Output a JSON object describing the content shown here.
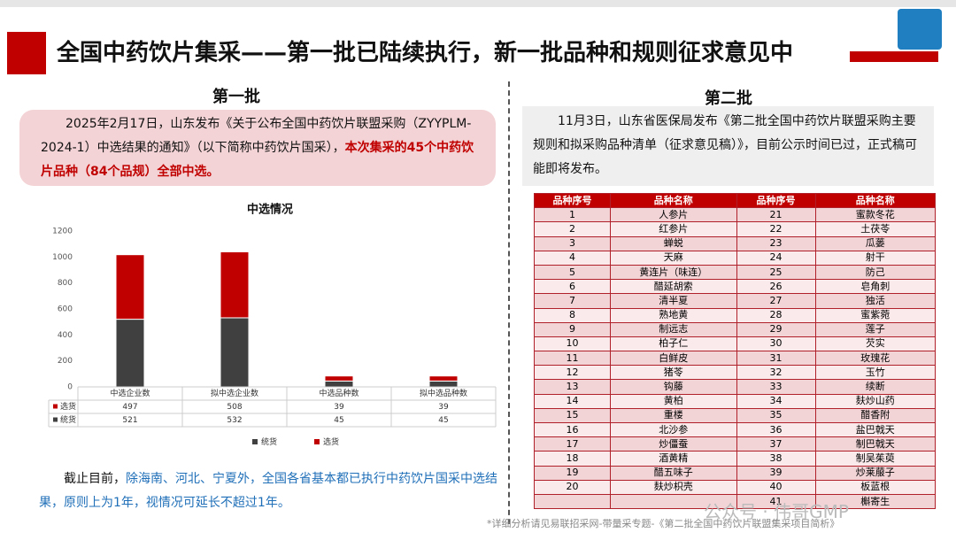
{
  "header": {
    "title": "全国中药饮片集采——第一批已陆续执行，新一批品种和规则征求意见中"
  },
  "batch1": {
    "heading": "第一批",
    "text": [
      "2025年2月17日，山东发布《关于公布全国中药饮片联盟采购（ZYYPLM-2024-1）中选结果的通知》（以下简称中药饮片国采），",
      "本次集采的45个中药饮片品种（84个品规）全部中选。"
    ],
    "note": [
      "截止目前，",
      "除海南、河北、宁夏外，全国各省基本都已执行中药饮片国采中选结果，原则上为1年，视情况可延长不超过1年。"
    ]
  },
  "chart_data": {
    "type": "bar",
    "stacked": true,
    "title": "中选情况",
    "categories": [
      "中选企业数",
      "拟中选企业数",
      "中选品种数",
      "拟中选品种数"
    ],
    "series": [
      {
        "name": "统货",
        "color": "#404040",
        "values": [
          521,
          532,
          45,
          45
        ]
      },
      {
        "name": "选货",
        "color": "#c00000",
        "values": [
          497,
          508,
          39,
          39
        ]
      }
    ],
    "ylim": [
      0,
      1200
    ],
    "yticks": [
      0,
      200,
      400,
      600,
      800,
      1000,
      1200
    ],
    "grid": false,
    "legend": "bottom",
    "data_table": true
  },
  "batch2": {
    "heading": "第二批",
    "text": "11月3日，山东省医保局发布《第二批全国中药饮片联盟采购主要规则和拟采购品种清单（征求意见稿）》，目前公示时间已过，正式稿可能即将发布。",
    "table": {
      "header": [
        "品种序号",
        "品种名称",
        "品种序号",
        "品种名称"
      ],
      "rows": [
        [
          1,
          "人参片",
          21,
          "蜜款冬花"
        ],
        [
          2,
          "红参片",
          22,
          "土茯苓"
        ],
        [
          3,
          "蝉蜕",
          23,
          "瓜蒌"
        ],
        [
          4,
          "天麻",
          24,
          "射干"
        ],
        [
          5,
          "黄连片（味连）",
          25,
          "防己"
        ],
        [
          6,
          "醋延胡索",
          26,
          "皂角刺"
        ],
        [
          7,
          "清半夏",
          27,
          "独活"
        ],
        [
          8,
          "熟地黄",
          28,
          "蜜紫菀"
        ],
        [
          9,
          "制远志",
          29,
          "莲子"
        ],
        [
          10,
          "柏子仁",
          30,
          "芡实"
        ],
        [
          11,
          "白鲜皮",
          31,
          "玫瑰花"
        ],
        [
          12,
          "猪苓",
          32,
          "玉竹"
        ],
        [
          13,
          "钩藤",
          33,
          "续断"
        ],
        [
          14,
          "黄柏",
          34,
          "麸炒山药"
        ],
        [
          15,
          "重楼",
          35,
          "醋香附"
        ],
        [
          16,
          "北沙参",
          36,
          "盐巴戟天"
        ],
        [
          17,
          "炒僵蚕",
          37,
          "制巴戟天"
        ],
        [
          18,
          "酒黄精",
          38,
          "制吴茱萸"
        ],
        [
          19,
          "醋五味子",
          39,
          "炒莱菔子"
        ],
        [
          20,
          "麸炒枳壳",
          40,
          "板蓝根"
        ],
        [
          null,
          null,
          41,
          "槲寄生"
        ]
      ]
    }
  },
  "footer": {
    "source": "*详细分析请见易联招采网-带量采专题-《第二批全国中药饮片联盟集采项目简析》",
    "watermark": "公众号 · 伟哥GMP"
  }
}
